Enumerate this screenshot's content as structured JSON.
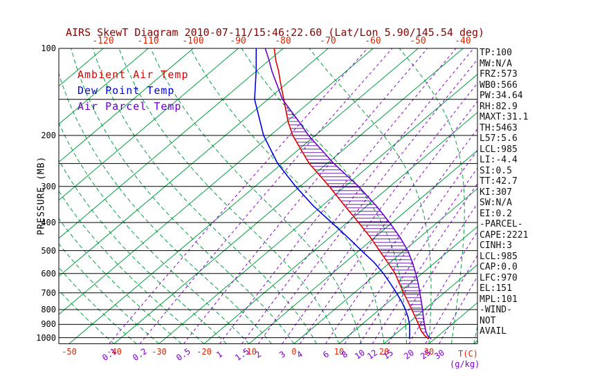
{
  "title": "AIRS SkewT Diagram 2010-07-11/15:46:22.60 (Lat/Lon 5.90/145.54 deg)",
  "colors": {
    "title": "#8b0000",
    "axis_text": "#000000",
    "temp_ticks": "#dd2200",
    "isotherm": "#00a040",
    "moist_adiabat": "#00a040",
    "mixing_ratio": "#8800cc",
    "mixing_text": "#7a00cc",
    "isobar": "#000000",
    "ambient": "#dd0000",
    "dewpoint": "#0000dd",
    "parcel": "#6600cc",
    "hatch": "#550099",
    "stats_text": "#111111"
  },
  "axes": {
    "pressure_label": "PRESSURE (MB)",
    "pressure_ticks": [
      100,
      200,
      300,
      400,
      500,
      600,
      700,
      800,
      900,
      1000
    ],
    "top_temp_ticks": [
      -120,
      -110,
      -100,
      -90,
      -80,
      -70,
      -60,
      -50,
      -40
    ],
    "bottom_temp_ticks": [
      -50,
      -40,
      -30,
      -20,
      -10,
      0,
      10,
      20,
      30
    ],
    "mixing_ratios": [
      0.1,
      0.2,
      0.5,
      1,
      1.5,
      2,
      3,
      4,
      6,
      8,
      10,
      12,
      15,
      20,
      25,
      30
    ],
    "temp_unit_label": "T(C)",
    "mixing_unit_label": "(g/kg)"
  },
  "legend": [
    {
      "label": "Ambient Air Temp",
      "color": "#dd0000"
    },
    {
      "label": "Dew Point Temp",
      "color": "#0000dd"
    },
    {
      "label": "Air Parcel Temp",
      "color": "#6600cc"
    }
  ],
  "stats": [
    "TP:100",
    "MW:N/A",
    "FRZ:573",
    "WB0:566",
    "PW:34.64",
    "RH:82.9",
    "MAXT:31.1",
    "TH:5463",
    "L57:5.6",
    "LCL:985",
    "LI:-4.4",
    "SI:0.5",
    "TT:42.7",
    "KI:307",
    "SW:N/A",
    "EI:0.2",
    "-PARCEL-",
    "CAPE:2221",
    "CINH:3",
    "LCL:985",
    "CAP:0.0",
    "LFC:970",
    "EL:151",
    "MPL:101",
    "-WIND-",
    "NOT",
    "AVAIL"
  ],
  "chart_data": {
    "type": "line",
    "title": "AIRS SkewT Diagram 2010-07-11/15:46:22.60 (Lat/Lon 5.90/145.54 deg)",
    "xlabel": "Temperature (C)",
    "ylabel": "Pressure (MB)",
    "pressure_range": [
      100,
      1050
    ],
    "log_pressure_axis": true,
    "skewed": true,
    "pressure_lines": [
      100,
      150,
      200,
      250,
      300,
      400,
      500,
      600,
      700,
      800,
      900,
      1000
    ],
    "isotherms": {
      "start": -130,
      "end": 40,
      "step": 10
    },
    "moist_adiabat_surface_temps": [
      -40,
      -35,
      -30,
      -25,
      -20,
      -15,
      -10,
      -5,
      0,
      5,
      10,
      15,
      20,
      25,
      30,
      35,
      40,
      45
    ],
    "hatch": {
      "between": [
        "ambient",
        "parcel"
      ],
      "p_bottom": 958,
      "p_top": 152
    },
    "series": [
      {
        "id": "ambient",
        "name": "Ambient Air Temp",
        "color": "#dd0000",
        "points": [
          [
            1010,
            28.6
          ],
          [
            1000,
            28.0
          ],
          [
            985,
            27.0
          ],
          [
            950,
            25.0
          ],
          [
            900,
            22.6
          ],
          [
            850,
            20.0
          ],
          [
            800,
            17.2
          ],
          [
            750,
            14.2
          ],
          [
            700,
            11.0
          ],
          [
            650,
            7.6
          ],
          [
            600,
            4.0
          ],
          [
            550,
            -0.5
          ],
          [
            500,
            -5.5
          ],
          [
            450,
            -11.0
          ],
          [
            400,
            -17.5
          ],
          [
            350,
            -25.0
          ],
          [
            300,
            -33.5
          ],
          [
            250,
            -44.0
          ],
          [
            200,
            -55.0
          ],
          [
            180,
            -59.5
          ],
          [
            150,
            -66.5
          ],
          [
            130,
            -72.0
          ],
          [
            120,
            -75.0
          ],
          [
            110,
            -78.5
          ],
          [
            100,
            -82.0
          ]
        ]
      },
      {
        "id": "dewpoint",
        "name": "Dew Point Temp",
        "color": "#0000dd",
        "points": [
          [
            1010,
            24.5
          ],
          [
            1000,
            24.0
          ],
          [
            985,
            23.6
          ],
          [
            950,
            22.4
          ],
          [
            900,
            20.6
          ],
          [
            850,
            18.4
          ],
          [
            800,
            15.8
          ],
          [
            750,
            12.8
          ],
          [
            700,
            9.4
          ],
          [
            650,
            5.6
          ],
          [
            600,
            1.4
          ],
          [
            550,
            -3.5
          ],
          [
            500,
            -9.5
          ],
          [
            450,
            -16.0
          ],
          [
            400,
            -23.5
          ],
          [
            350,
            -32.0
          ],
          [
            300,
            -41.0
          ],
          [
            250,
            -51.0
          ],
          [
            200,
            -61.5
          ],
          [
            150,
            -73.0
          ],
          [
            120,
            -80.0
          ],
          [
            100,
            -86.0
          ]
        ]
      },
      {
        "id": "parcel",
        "name": "Air Parcel Temp",
        "color": "#6600cc",
        "points": [
          [
            1010,
            29.2
          ],
          [
            1000,
            28.6
          ],
          [
            985,
            27.6
          ],
          [
            950,
            26.0
          ],
          [
            900,
            23.9
          ],
          [
            850,
            21.8
          ],
          [
            800,
            19.6
          ],
          [
            750,
            17.2
          ],
          [
            700,
            14.6
          ],
          [
            650,
            11.8
          ],
          [
            600,
            8.6
          ],
          [
            550,
            5.0
          ],
          [
            500,
            0.8
          ],
          [
            450,
            -4.4
          ],
          [
            400,
            -10.6
          ],
          [
            350,
            -18.0
          ],
          [
            300,
            -27.0
          ],
          [
            250,
            -38.5
          ],
          [
            200,
            -51.5
          ],
          [
            180,
            -57.0
          ],
          [
            150,
            -66.8
          ],
          [
            130,
            -73.0
          ],
          [
            120,
            -76.5
          ],
          [
            110,
            -80.0
          ],
          [
            100,
            -84.0
          ]
        ]
      }
    ]
  }
}
